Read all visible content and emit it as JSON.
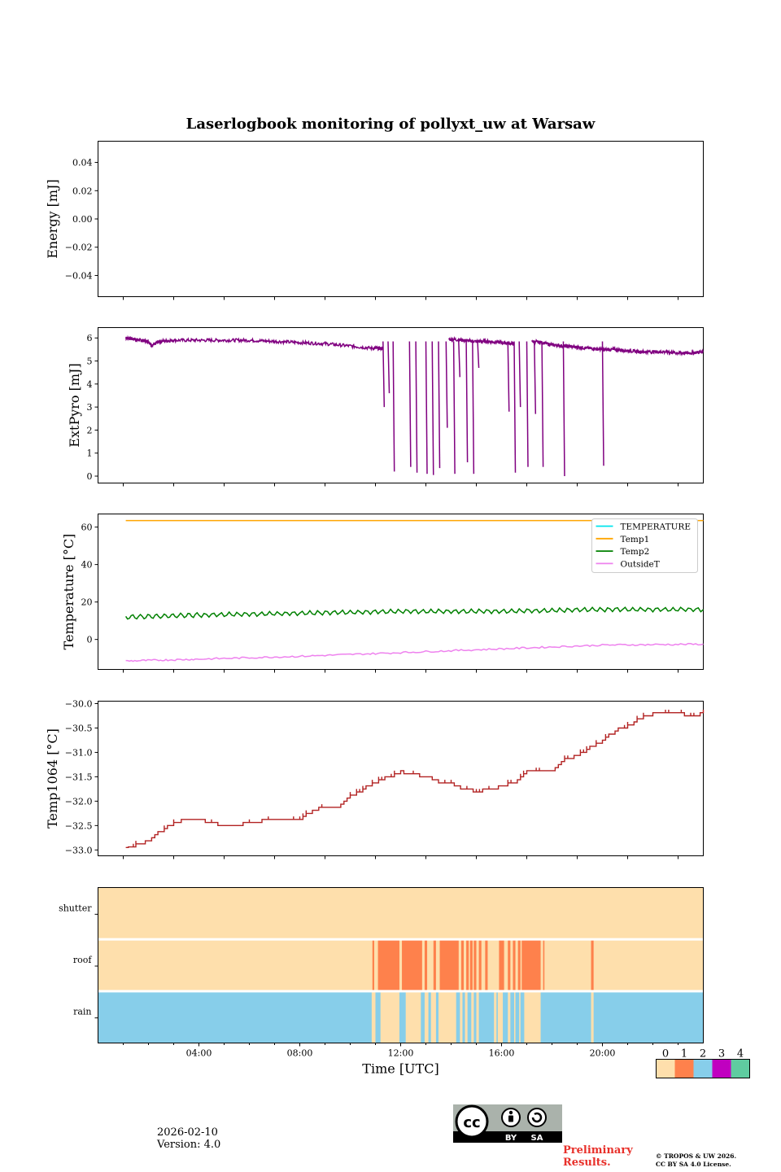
{
  "figure_title": "Laserlogbook monitoring of pollyxt_uw at Warsaw",
  "footer": {
    "date": "2026-02-10",
    "version": "Version: 4.0",
    "preliminary_line1": "Preliminary",
    "preliminary_line2": "Results.",
    "copyright_line1": "© TROPOS & UW 2026.",
    "copyright_line2": "CC BY SA 4.0 License.",
    "license_badge": {
      "cc": "cc",
      "by": "BY",
      "sa": "SA"
    }
  },
  "chart_data": [
    {
      "type": "line",
      "title": "Laserlogbook monitoring of pollyxt_uw at Warsaw",
      "ylabel": "Energy [mJ]",
      "xlim": [
        0,
        24
      ],
      "ylim": [
        -0.055,
        0.055
      ],
      "yticks": [
        0.04,
        0.02,
        0.0,
        -0.02,
        -0.04
      ],
      "ytick_labels": [
        "0.04",
        "0.02",
        "0.00",
        "−0.02",
        "−0.04"
      ],
      "series": []
    },
    {
      "type": "line",
      "ylabel": "ExtPyro [mJ]",
      "xlim": [
        0,
        24
      ],
      "ylim": [
        -0.3,
        6.45
      ],
      "yticks": [
        0,
        1,
        2,
        3,
        4,
        5,
        6
      ],
      "ytick_labels": [
        "0",
        "1",
        "2",
        "3",
        "4",
        "5",
        "6"
      ],
      "series": [
        {
          "name": "ExtPyro",
          "color": "#800080",
          "x": [
            1.1,
            1.4,
            1.7,
            2.0,
            2.15,
            2.4,
            3.0,
            4.0,
            5.0,
            6.0,
            7.0,
            8.0,
            9.0,
            10.0,
            10.9,
            11.3
          ],
          "values": [
            6.0,
            5.95,
            5.9,
            5.85,
            5.65,
            5.85,
            5.9,
            5.9,
            5.9,
            5.9,
            5.85,
            5.8,
            5.75,
            5.65,
            5.55,
            5.55
          ]
        },
        {
          "name": "ExtPyro",
          "color": "#800080",
          "x": [
            13.9,
            14.5,
            15.0,
            15.5,
            16.0,
            16.5
          ],
          "values": [
            5.95,
            5.9,
            5.85,
            5.85,
            5.8,
            5.75
          ]
        },
        {
          "name": "ExtPyro",
          "color": "#800080",
          "x": [
            17.2,
            17.6,
            18.0,
            18.5,
            19.0,
            19.5,
            20.0,
            20.5,
            21.0,
            21.5,
            22.0,
            22.5,
            23.0,
            23.5,
            24.0
          ],
          "values": [
            5.85,
            5.8,
            5.7,
            5.65,
            5.6,
            5.55,
            5.5,
            5.5,
            5.45,
            5.4,
            5.4,
            5.4,
            5.35,
            5.35,
            5.4
          ]
        }
      ],
      "dropouts": [
        {
          "x": 11.3,
          "low": 3.0
        },
        {
          "x": 11.5,
          "low": 3.6
        },
        {
          "x": 11.7,
          "low": 0.2
        },
        {
          "x": 12.35,
          "low": 0.4
        },
        {
          "x": 12.6,
          "low": 0.15
        },
        {
          "x": 13.0,
          "low": 0.1
        },
        {
          "x": 13.25,
          "low": 0.05
        },
        {
          "x": 13.5,
          "low": 0.35
        },
        {
          "x": 13.8,
          "low": 2.1
        },
        {
          "x": 14.1,
          "low": 0.1
        },
        {
          "x": 14.3,
          "low": 4.3
        },
        {
          "x": 14.6,
          "low": 0.6
        },
        {
          "x": 14.85,
          "low": 0.1
        },
        {
          "x": 15.05,
          "low": 4.7
        },
        {
          "x": 16.25,
          "low": 2.8
        },
        {
          "x": 16.5,
          "low": 0.15
        },
        {
          "x": 16.7,
          "low": 3.0
        },
        {
          "x": 17.0,
          "low": 0.4
        },
        {
          "x": 17.3,
          "low": 2.7
        },
        {
          "x": 17.6,
          "low": 0.4
        },
        {
          "x": 18.45,
          "low": 0.0
        },
        {
          "x": 20.0,
          "low": 0.45
        }
      ]
    },
    {
      "type": "line",
      "ylabel": "Temperature [°C]",
      "xlim": [
        0,
        24
      ],
      "ylim": [
        -16,
        67
      ],
      "yticks": [
        60,
        40,
        20,
        0
      ],
      "ytick_labels": [
        "60",
        "40",
        "20",
        "0"
      ],
      "legend": {
        "placement": "top-right",
        "entries": [
          "TEMPERATURE",
          "Temp1",
          "Temp2",
          "OutsideT"
        ]
      },
      "series": [
        {
          "name": "TEMPERATURE",
          "color": "#00e5ee",
          "x": [],
          "values": []
        },
        {
          "name": "Temp1",
          "color": "#ffa500",
          "x": [
            1.1,
            24.0
          ],
          "values": [
            63.5,
            63.5
          ]
        },
        {
          "name": "Temp2",
          "color": "#008000",
          "x": [
            1.1,
            4,
            8,
            12,
            16,
            20,
            24
          ],
          "values": [
            12,
            13,
            14,
            15,
            15,
            16,
            16
          ]
        },
        {
          "name": "OutsideT",
          "color": "#ee82ee",
          "x": [
            1.1,
            4,
            8,
            12,
            16,
            20,
            24
          ],
          "values": [
            -11.5,
            -10.5,
            -9,
            -7,
            -5,
            -3,
            -2.5
          ]
        }
      ]
    },
    {
      "type": "line",
      "ylabel": "Temp1064 [°C]",
      "xlim": [
        0,
        24
      ],
      "ylim": [
        -33.12,
        -29.95
      ],
      "yticks": [
        -30.0,
        -30.5,
        -31.0,
        -31.5,
        -32.0,
        -32.5,
        -33.0
      ],
      "ytick_labels": [
        "−30.0",
        "−30.5",
        "−31.0",
        "−31.5",
        "−32.0",
        "−32.5",
        "−33.0"
      ],
      "series": [
        {
          "name": "Temp1064",
          "color": "#b22222",
          "x": [
            1.1,
            1.5,
            2.0,
            2.5,
            3.0,
            3.3,
            4.0,
            5.0,
            6.0,
            7.0,
            8.0,
            8.5,
            9.0,
            9.5,
            10.0,
            10.5,
            11.0,
            11.5,
            12.0,
            12.5,
            13.0,
            13.5,
            14.0,
            14.5,
            15.0,
            15.5,
            16.0,
            16.5,
            17.0,
            17.5,
            18.0,
            18.5,
            19.0,
            19.5,
            20.0,
            20.5,
            21.0,
            21.5,
            22.0,
            22.5,
            23.0,
            23.5,
            24.0
          ],
          "values": [
            -32.95,
            -32.9,
            -32.8,
            -32.6,
            -32.45,
            -32.4,
            -32.4,
            -32.5,
            -32.45,
            -32.35,
            -32.35,
            -32.2,
            -32.1,
            -32.1,
            -31.9,
            -31.75,
            -31.6,
            -31.5,
            -31.4,
            -31.45,
            -31.5,
            -31.6,
            -31.65,
            -31.75,
            -31.8,
            -31.75,
            -31.7,
            -31.6,
            -31.4,
            -31.4,
            -31.35,
            -31.15,
            -31.05,
            -30.9,
            -30.75,
            -30.55,
            -30.45,
            -30.3,
            -30.2,
            -30.2,
            -30.2,
            -30.25,
            -30.2
          ]
        }
      ]
    },
    {
      "type": "heatmap",
      "xlabel": "Time [UTC]",
      "xlim": [
        0,
        24
      ],
      "x_tick_labels": [
        "04:00",
        "08:00",
        "12:00",
        "16:00",
        "20:00"
      ],
      "x_ticks": [
        4,
        8,
        12,
        16,
        20
      ],
      "rows": [
        "shutter",
        "roof",
        "rain"
      ],
      "colorbar": {
        "labels": [
          "0",
          "1",
          "2",
          "3",
          "4"
        ],
        "colors": [
          "#fedfac",
          "#fe814c",
          "#87ceea",
          "#c000c0",
          "#5fcca0"
        ]
      },
      "row_default": {
        "shutter": 0,
        "roof": 0,
        "rain": 2
      },
      "roof_events": [
        {
          "start": 10.88,
          "end": 10.95,
          "value": 1
        },
        {
          "start": 11.1,
          "end": 11.95,
          "value": 1
        },
        {
          "start": 12.05,
          "end": 12.85,
          "value": 1
        },
        {
          "start": 12.95,
          "end": 13.05,
          "value": 1
        },
        {
          "start": 13.3,
          "end": 13.4,
          "value": 1
        },
        {
          "start": 13.55,
          "end": 14.3,
          "value": 1
        },
        {
          "start": 14.4,
          "end": 14.5,
          "value": 1
        },
        {
          "start": 14.6,
          "end": 14.7,
          "value": 1
        },
        {
          "start": 14.75,
          "end": 14.85,
          "value": 1
        },
        {
          "start": 14.9,
          "end": 15.0,
          "value": 1
        },
        {
          "start": 15.1,
          "end": 15.2,
          "value": 1
        },
        {
          "start": 15.35,
          "end": 15.45,
          "value": 1
        },
        {
          "start": 15.9,
          "end": 16.0,
          "value": 1
        },
        {
          "start": 16.0,
          "end": 16.1,
          "value": 1
        },
        {
          "start": 16.25,
          "end": 16.35,
          "value": 1
        },
        {
          "start": 16.45,
          "end": 16.55,
          "value": 1
        },
        {
          "start": 16.65,
          "end": 16.75,
          "value": 1
        },
        {
          "start": 16.8,
          "end": 17.55,
          "value": 1
        },
        {
          "start": 17.65,
          "end": 17.7,
          "value": 1
        },
        {
          "start": 19.55,
          "end": 19.65,
          "value": 1
        }
      ],
      "rain_events": [
        {
          "start": 10.85,
          "end": 11.0,
          "value": 0
        },
        {
          "start": 11.2,
          "end": 11.95,
          "value": 0
        },
        {
          "start": 12.2,
          "end": 12.8,
          "value": 0
        },
        {
          "start": 12.95,
          "end": 13.1,
          "value": 0
        },
        {
          "start": 13.2,
          "end": 13.4,
          "value": 0
        },
        {
          "start": 13.5,
          "end": 14.2,
          "value": 0
        },
        {
          "start": 14.35,
          "end": 14.45,
          "value": 0
        },
        {
          "start": 14.55,
          "end": 14.65,
          "value": 0
        },
        {
          "start": 14.8,
          "end": 14.9,
          "value": 0
        },
        {
          "start": 15.0,
          "end": 15.1,
          "value": 0
        },
        {
          "start": 15.7,
          "end": 15.8,
          "value": 0
        },
        {
          "start": 15.85,
          "end": 16.05,
          "value": 0
        },
        {
          "start": 16.25,
          "end": 16.35,
          "value": 0
        },
        {
          "start": 16.5,
          "end": 16.55,
          "value": 0
        },
        {
          "start": 16.7,
          "end": 16.75,
          "value": 0
        },
        {
          "start": 16.9,
          "end": 17.55,
          "value": 0
        },
        {
          "start": 19.55,
          "end": 19.65,
          "value": 0
        }
      ]
    }
  ]
}
